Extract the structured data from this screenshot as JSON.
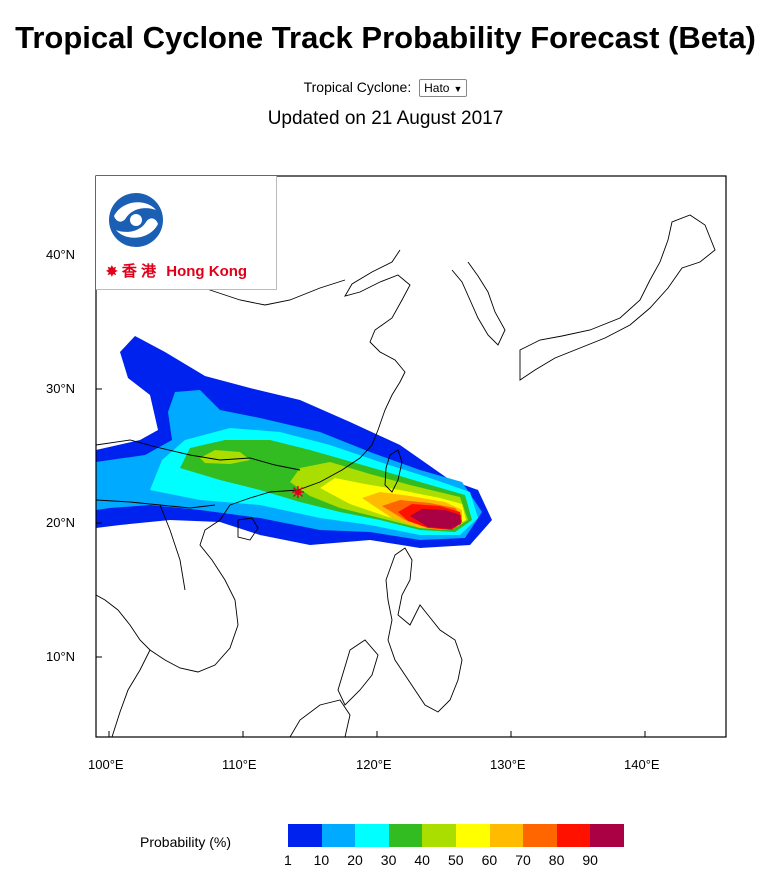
{
  "header": {
    "title": "Tropical Cyclone Track Probability Forecast (Beta)",
    "selector_label": "Tropical Cyclone:",
    "selector_value": "Hato",
    "updated": "Updated on 21 August 2017"
  },
  "logo": {
    "text_cn": "香 港",
    "text_en": "Hong Kong"
  },
  "map": {
    "lat_labels": [
      "40°N",
      "30°N",
      "20°N",
      "10°N"
    ],
    "lon_labels": [
      "100°E",
      "110°E",
      "120°E",
      "130°E",
      "140°E"
    ],
    "extent": {
      "lon_min": 99,
      "lon_max": 146,
      "lat_min": 4,
      "lat_max": 45
    }
  },
  "legend": {
    "label": "Probability (%)",
    "ticks": [
      "1",
      "10",
      "20",
      "30",
      "40",
      "50",
      "60",
      "70",
      "80",
      "90"
    ],
    "colors": [
      "#0022ee",
      "#00aaff",
      "#00ffff",
      "#33bb22",
      "#aadd00",
      "#ffff00",
      "#ffbb00",
      "#ff6600",
      "#ff1100",
      "#aa0044"
    ]
  },
  "colors": {
    "brand_red": "#e0001a",
    "brand_blue": "#1a5fb4",
    "hk_marker": "#e0001a"
  }
}
